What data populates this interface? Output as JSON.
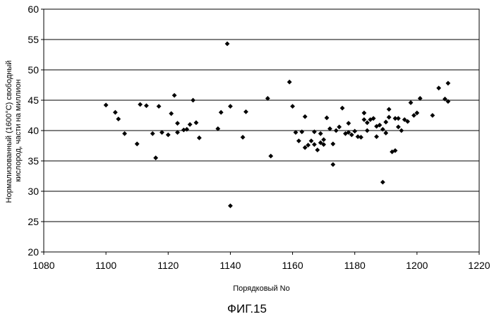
{
  "figure_caption": "ФИГ.15",
  "chart_data": {
    "type": "scatter",
    "title": "",
    "xlabel": "Порядковый No",
    "ylabel_lines": [
      "Нормализованный (1600°C) свободный",
      "кислород, части на миллион"
    ],
    "xlim": [
      1080,
      1220
    ],
    "ylim": [
      20,
      60
    ],
    "xticks": [
      1080,
      1100,
      1120,
      1140,
      1160,
      1180,
      1200,
      1220
    ],
    "yticks": [
      20,
      25,
      30,
      35,
      40,
      45,
      50,
      55,
      60
    ],
    "grid": "horizontal",
    "legend": "none",
    "marker_color": "#000000",
    "points": [
      [
        1100,
        44.2
      ],
      [
        1103,
        43.0
      ],
      [
        1104,
        41.9
      ],
      [
        1106,
        39.5
      ],
      [
        1110,
        37.8
      ],
      [
        1111,
        44.3
      ],
      [
        1113,
        44.1
      ],
      [
        1115,
        39.5
      ],
      [
        1116,
        35.5
      ],
      [
        1117,
        44.0
      ],
      [
        1118,
        39.7
      ],
      [
        1120,
        39.3
      ],
      [
        1121,
        42.8
      ],
      [
        1122,
        45.8
      ],
      [
        1123,
        39.7
      ],
      [
        1123,
        41.2
      ],
      [
        1125,
        40.1
      ],
      [
        1126,
        40.2
      ],
      [
        1127,
        41.0
      ],
      [
        1128,
        45.0
      ],
      [
        1129,
        41.3
      ],
      [
        1130,
        38.8
      ],
      [
        1136,
        40.3
      ],
      [
        1137,
        43.0
      ],
      [
        1139,
        54.3
      ],
      [
        1140,
        44.0
      ],
      [
        1140,
        27.6
      ],
      [
        1144,
        38.9
      ],
      [
        1145,
        43.1
      ],
      [
        1152,
        45.3
      ],
      [
        1153,
        35.8
      ],
      [
        1159,
        48.0
      ],
      [
        1160,
        44.0
      ],
      [
        1161,
        39.7
      ],
      [
        1162,
        38.3
      ],
      [
        1163,
        39.8
      ],
      [
        1164,
        42.3
      ],
      [
        1164,
        37.2
      ],
      [
        1165,
        37.6
      ],
      [
        1166,
        38.3
      ],
      [
        1167,
        39.8
      ],
      [
        1167,
        37.7
      ],
      [
        1168,
        36.8
      ],
      [
        1169,
        38.0
      ],
      [
        1169,
        39.5
      ],
      [
        1170,
        38.5
      ],
      [
        1170,
        37.7
      ],
      [
        1171,
        42.1
      ],
      [
        1172,
        40.3
      ],
      [
        1173,
        37.8
      ],
      [
        1173,
        34.4
      ],
      [
        1174,
        40.0
      ],
      [
        1175,
        40.6
      ],
      [
        1176,
        43.7
      ],
      [
        1177,
        39.5
      ],
      [
        1178,
        39.7
      ],
      [
        1178,
        41.2
      ],
      [
        1179,
        39.3
      ],
      [
        1180,
        39.9
      ],
      [
        1181,
        39.0
      ],
      [
        1182,
        38.9
      ],
      [
        1183,
        42.9
      ],
      [
        1183,
        41.8
      ],
      [
        1184,
        40.0
      ],
      [
        1184,
        41.3
      ],
      [
        1185,
        41.8
      ],
      [
        1186,
        42.0
      ],
      [
        1187,
        39.0
      ],
      [
        1187,
        40.7
      ],
      [
        1188,
        40.9
      ],
      [
        1189,
        31.5
      ],
      [
        1189,
        40.2
      ],
      [
        1190,
        41.4
      ],
      [
        1190,
        39.6
      ],
      [
        1191,
        43.5
      ],
      [
        1191,
        42.2
      ],
      [
        1192,
        36.5
      ],
      [
        1193,
        36.7
      ],
      [
        1193,
        42.0
      ],
      [
        1194,
        40.6
      ],
      [
        1194,
        42.0
      ],
      [
        1195,
        40.0
      ],
      [
        1196,
        41.8
      ],
      [
        1197,
        41.5
      ],
      [
        1198,
        44.6
      ],
      [
        1199,
        42.5
      ],
      [
        1200,
        42.9
      ],
      [
        1201,
        45.3
      ],
      [
        1205,
        42.5
      ],
      [
        1207,
        47.0
      ],
      [
        1209,
        45.2
      ],
      [
        1210,
        44.8
      ],
      [
        1210,
        47.8
      ]
    ]
  }
}
